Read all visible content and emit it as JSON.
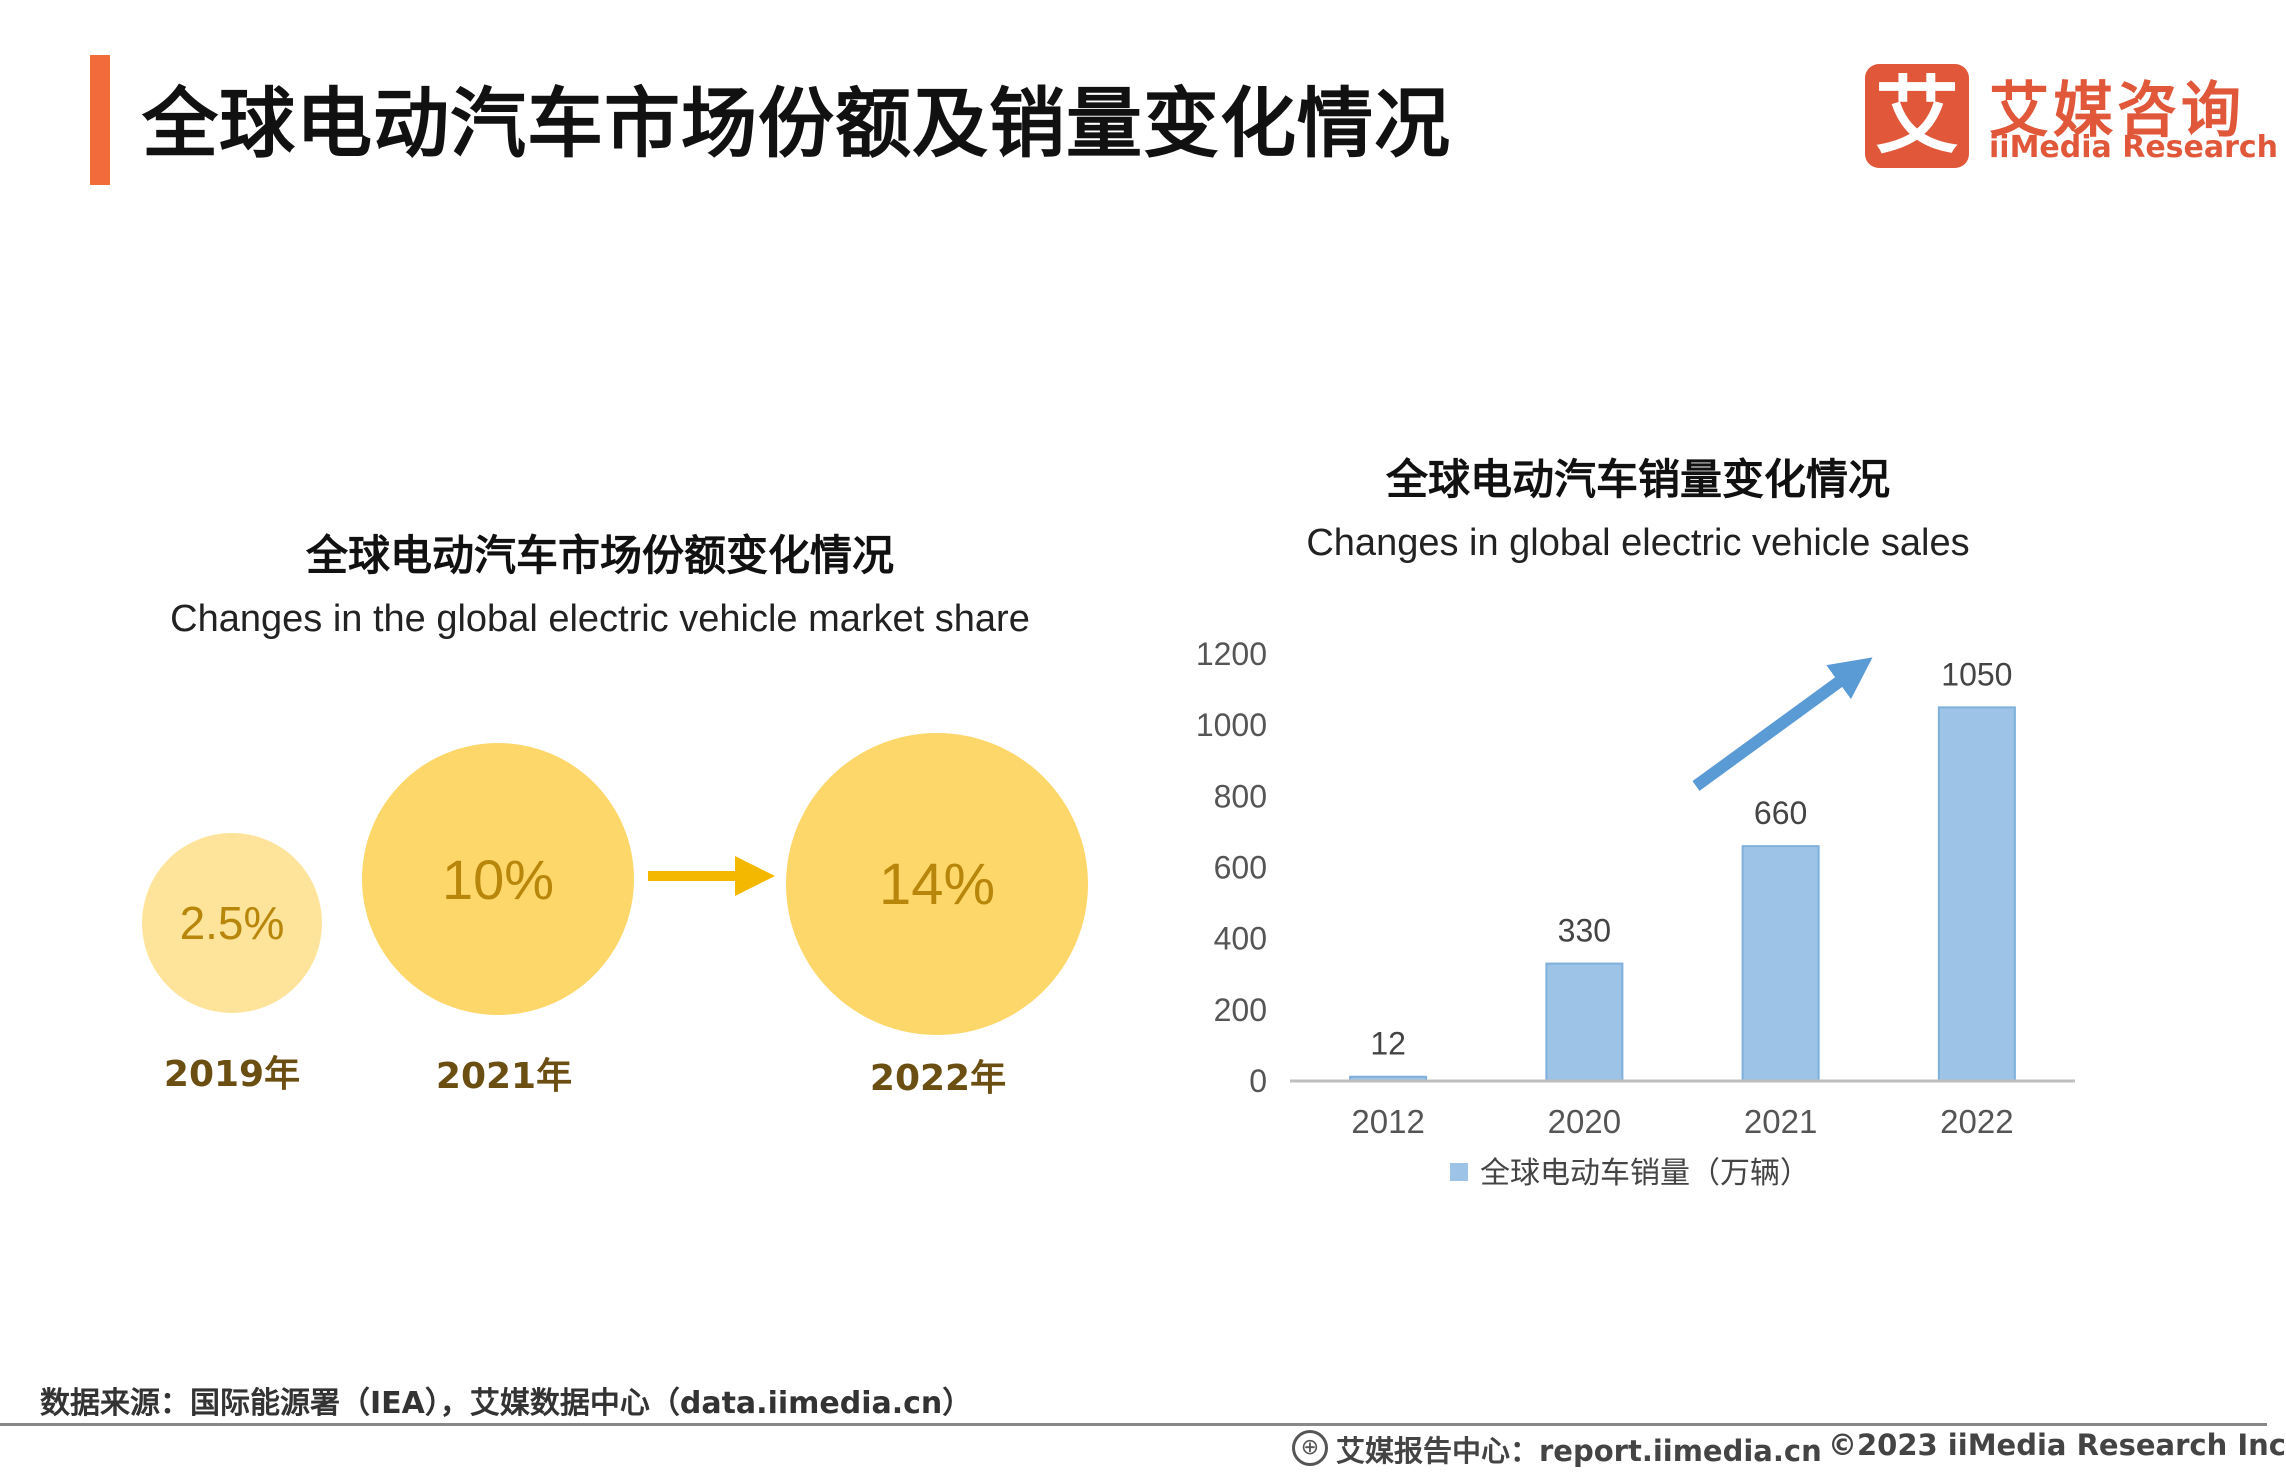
{
  "header": {
    "title": "全球电动汽车市场份额及销量变化情况"
  },
  "logo": {
    "badge": "艾",
    "name_cn": "艾媒咨询",
    "name_en": "iiMedia Research"
  },
  "colors": {
    "accent": "#f26b3a",
    "brand": "#e0573a",
    "bubble_light": "#fde49a",
    "bubble": "#fdd76a",
    "bubble_text": "#b8860b",
    "bar": "#9dc3e6",
    "trend_arrow": "#5b9bd5",
    "share_arrow": "#f5b800"
  },
  "market_share": {
    "title_cn": "全球电动汽车市场份额变化情况",
    "title_en": "Changes in the global electric vehicle market share",
    "bubbles": [
      {
        "value": "2.5%",
        "year": "2019年"
      },
      {
        "value": "10%",
        "year": "2021年"
      },
      {
        "value": "14%",
        "year": "2022年"
      }
    ]
  },
  "chart_data": {
    "type": "bar",
    "title": "全球电动汽车销量变化情况",
    "subtitle": "Changes in global electric vehicle sales",
    "categories": [
      "2012",
      "2020",
      "2021",
      "2022"
    ],
    "series": [
      {
        "name": "全球电动车销量（万辆）",
        "values": [
          12,
          330,
          660,
          1050
        ]
      }
    ],
    "data_labels": [
      "12",
      "330",
      "660",
      "1050"
    ],
    "ylim": [
      0,
      1200
    ],
    "yticks": [
      0,
      200,
      400,
      600,
      800,
      1000,
      1200
    ],
    "ytick_labels": [
      "0",
      "200",
      "400",
      "600",
      "800",
      "1000",
      "1200"
    ],
    "xlabel": "",
    "ylabel": "",
    "grid": false,
    "legend": "bottom-center"
  },
  "footer": {
    "source": "数据来源：国际能源署（IEA），艾媒数据中心（data.iimedia.cn）",
    "center": "艾媒报告中心：report.iimedia.cn",
    "right": "©2023  iiMedia Research  Inc"
  }
}
